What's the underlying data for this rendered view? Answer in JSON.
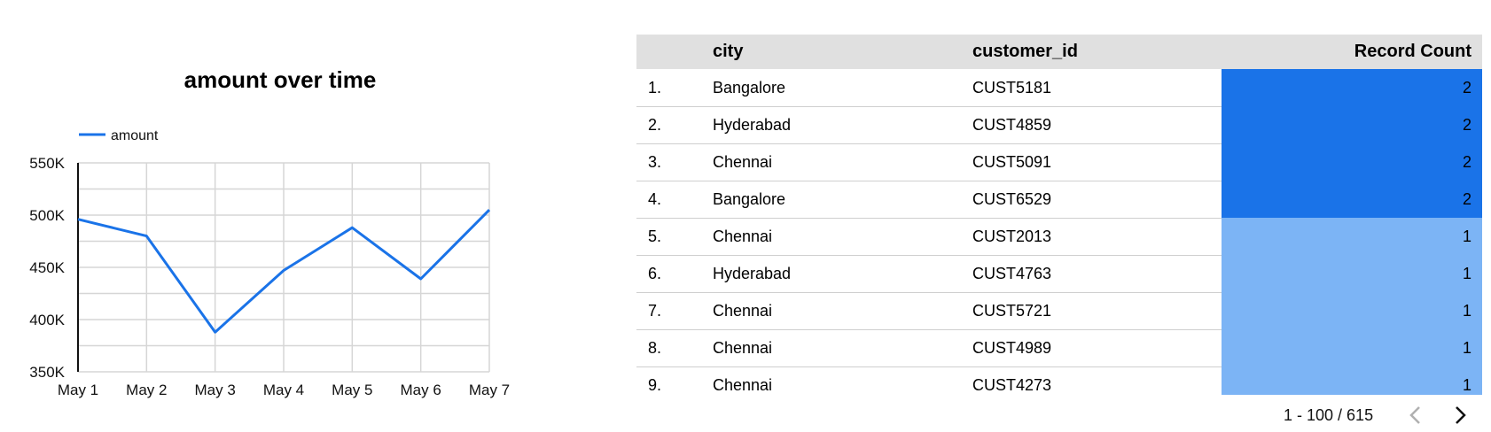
{
  "chart_data": {
    "type": "line",
    "title": "amount over time",
    "x": [
      "May 1",
      "May 2",
      "May 3",
      "May 4",
      "May 5",
      "May 6",
      "May 7"
    ],
    "series": [
      {
        "name": "amount",
        "values": [
          496000,
          480000,
          388000,
          447000,
          488000,
          439000,
          505000
        ],
        "color": "#1a73e8"
      }
    ],
    "ylim": [
      350000,
      550000
    ],
    "yticks": [
      {
        "value": 350000,
        "label": "350K"
      },
      {
        "value": 400000,
        "label": "400K"
      },
      {
        "value": 450000,
        "label": "450K"
      },
      {
        "value": 500000,
        "label": "500K"
      },
      {
        "value": 550000,
        "label": "550K"
      }
    ],
    "grid": true,
    "legend": "top-left"
  },
  "table": {
    "columns": [
      "",
      "city",
      "customer_id",
      "Record Count"
    ],
    "rows": [
      {
        "index": "1.",
        "city": "Bangalore",
        "customer_id": "CUST5181",
        "count": "2",
        "level": "high"
      },
      {
        "index": "2.",
        "city": "Hyderabad",
        "customer_id": "CUST4859",
        "count": "2",
        "level": "high"
      },
      {
        "index": "3.",
        "city": "Chennai",
        "customer_id": "CUST5091",
        "count": "2",
        "level": "high"
      },
      {
        "index": "4.",
        "city": "Bangalore",
        "customer_id": "CUST6529",
        "count": "2",
        "level": "high"
      },
      {
        "index": "5.",
        "city": "Chennai",
        "customer_id": "CUST2013",
        "count": "1",
        "level": "low"
      },
      {
        "index": "6.",
        "city": "Hyderabad",
        "customer_id": "CUST4763",
        "count": "1",
        "level": "low"
      },
      {
        "index": "7.",
        "city": "Chennai",
        "customer_id": "CUST5721",
        "count": "1",
        "level": "low"
      },
      {
        "index": "8.",
        "city": "Chennai",
        "customer_id": "CUST4989",
        "count": "1",
        "level": "low"
      },
      {
        "index": "9.",
        "city": "Chennai",
        "customer_id": "CUST4273",
        "count": "1",
        "level": "low"
      }
    ],
    "colors": {
      "high": "#1a73e8",
      "low": "#7cb4f5",
      "header": "#e0e0e0"
    }
  },
  "pagination": {
    "label": "1 - 100 / 615",
    "prev_icon": "chevron-left-icon",
    "next_icon": "chevron-right-icon"
  }
}
